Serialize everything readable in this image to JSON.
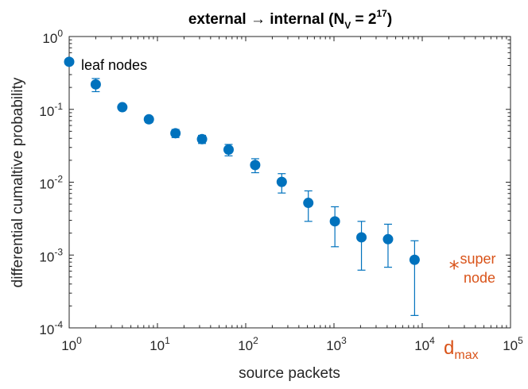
{
  "chart_data": {
    "type": "scatter",
    "title": {
      "main": "external → internal (N",
      "sub": "V",
      "eq": " = 2",
      "sup": "17",
      "close": ")"
    },
    "xlabel": "source packets",
    "ylabel": "differential cumaltive probability",
    "xscale": "log",
    "yscale": "log",
    "xlim": [
      1,
      100000
    ],
    "ylim": [
      0.0001,
      1
    ],
    "xticks": [
      {
        "base": "10",
        "exp": "0",
        "value": 1
      },
      {
        "base": "10",
        "exp": "1",
        "value": 10
      },
      {
        "base": "10",
        "exp": "2",
        "value": 100
      },
      {
        "base": "10",
        "exp": "3",
        "value": 1000
      },
      {
        "base": "10",
        "exp": "4",
        "value": 10000
      },
      {
        "base": "10",
        "exp": "5",
        "value": 100000
      }
    ],
    "yticks": [
      {
        "base": "10",
        "exp": "0",
        "value": 1
      },
      {
        "base": "10",
        "exp": "-1",
        "value": 0.1
      },
      {
        "base": "10",
        "exp": "-2",
        "value": 0.01
      },
      {
        "base": "10",
        "exp": "-3",
        "value": 0.001
      },
      {
        "base": "10",
        "exp": "-4",
        "value": 0.0001
      }
    ],
    "series": [
      {
        "name": "differential cumulative probability",
        "color": "#0072BD",
        "points": [
          {
            "x": 1,
            "y": 0.45,
            "lo": 0.45,
            "hi": 0.45
          },
          {
            "x": 2,
            "y": 0.22,
            "lo": 0.175,
            "hi": 0.265
          },
          {
            "x": 4,
            "y": 0.107,
            "lo": 0.1,
            "hi": 0.114
          },
          {
            "x": 8,
            "y": 0.073,
            "lo": 0.066,
            "hi": 0.08
          },
          {
            "x": 16,
            "y": 0.047,
            "lo": 0.041,
            "hi": 0.053
          },
          {
            "x": 32,
            "y": 0.039,
            "lo": 0.034,
            "hi": 0.044
          },
          {
            "x": 64,
            "y": 0.028,
            "lo": 0.023,
            "hi": 0.033
          },
          {
            "x": 128,
            "y": 0.0172,
            "lo": 0.0135,
            "hi": 0.021
          },
          {
            "x": 256,
            "y": 0.0101,
            "lo": 0.0071,
            "hi": 0.0131
          },
          {
            "x": 512,
            "y": 0.0052,
            "lo": 0.0029,
            "hi": 0.0076
          },
          {
            "x": 1024,
            "y": 0.0029,
            "lo": 0.0013,
            "hi": 0.0046
          },
          {
            "x": 2048,
            "y": 0.00175,
            "lo": 0.00062,
            "hi": 0.0029
          },
          {
            "x": 4096,
            "y": 0.00165,
            "lo": 0.00068,
            "hi": 0.00265
          },
          {
            "x": 8192,
            "y": 0.00086,
            "lo": 0.000148,
            "hi": 0.00157
          }
        ]
      }
    ],
    "supernode": {
      "x": 23000,
      "y": 0.00071,
      "marker": "*",
      "color": "#D95319"
    },
    "annotations": {
      "leaf_nodes": "leaf nodes",
      "super_line1": "super",
      "super_line2": "node",
      "dmax_main": "d",
      "dmax_sub": "max"
    },
    "colors": {
      "series": "#0072BD",
      "accent": "#D95319",
      "axis": "#262626"
    }
  }
}
